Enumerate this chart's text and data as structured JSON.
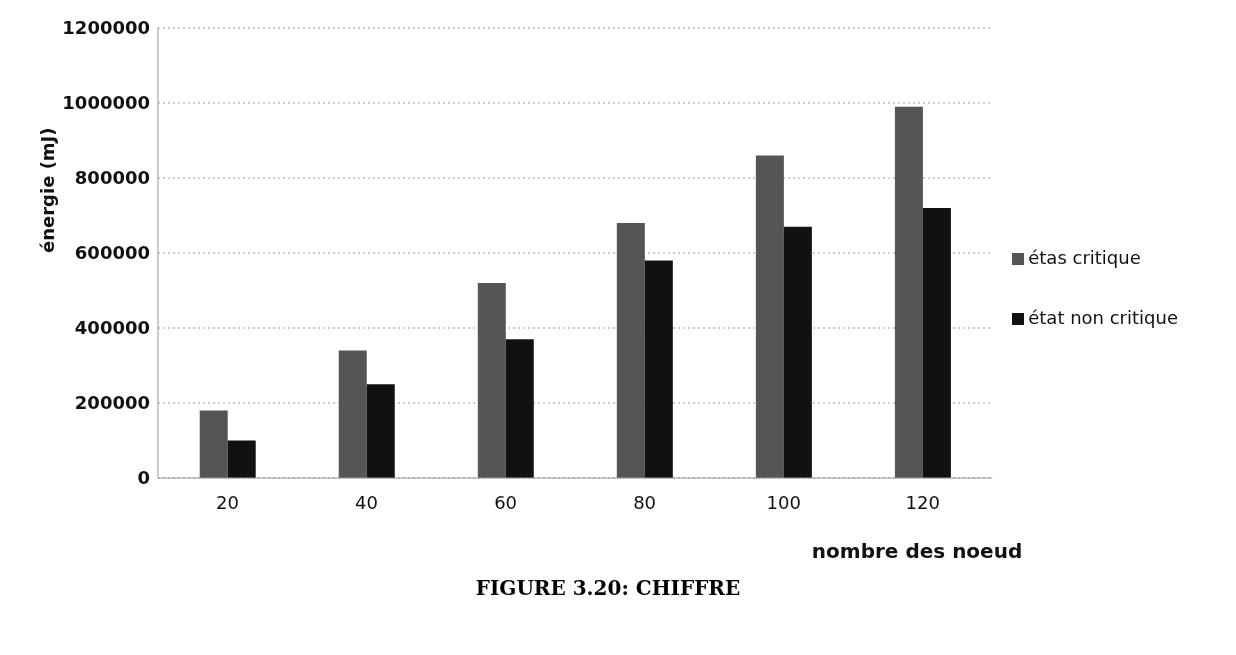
{
  "chart_data": {
    "type": "bar",
    "xlabel": "nombre des noeud",
    "ylabel": "énergie (mJ)",
    "categories": [
      "20",
      "40",
      "60",
      "80",
      "100",
      "120"
    ],
    "series": [
      {
        "name": "étas critique",
        "color": "#555555",
        "values": [
          180000,
          340000,
          520000,
          680000,
          860000,
          990000
        ]
      },
      {
        "name": "état non critique",
        "color": "#111111",
        "values": [
          100000,
          250000,
          370000,
          580000,
          670000,
          720000
        ]
      }
    ],
    "ylim": [
      0,
      1200000
    ],
    "yticks": [
      0,
      200000,
      400000,
      600000,
      800000,
      1000000,
      1200000
    ],
    "grid": "y",
    "legend": "right",
    "annotations": [
      "FIGURE 3.20: CHIFFRE"
    ]
  }
}
